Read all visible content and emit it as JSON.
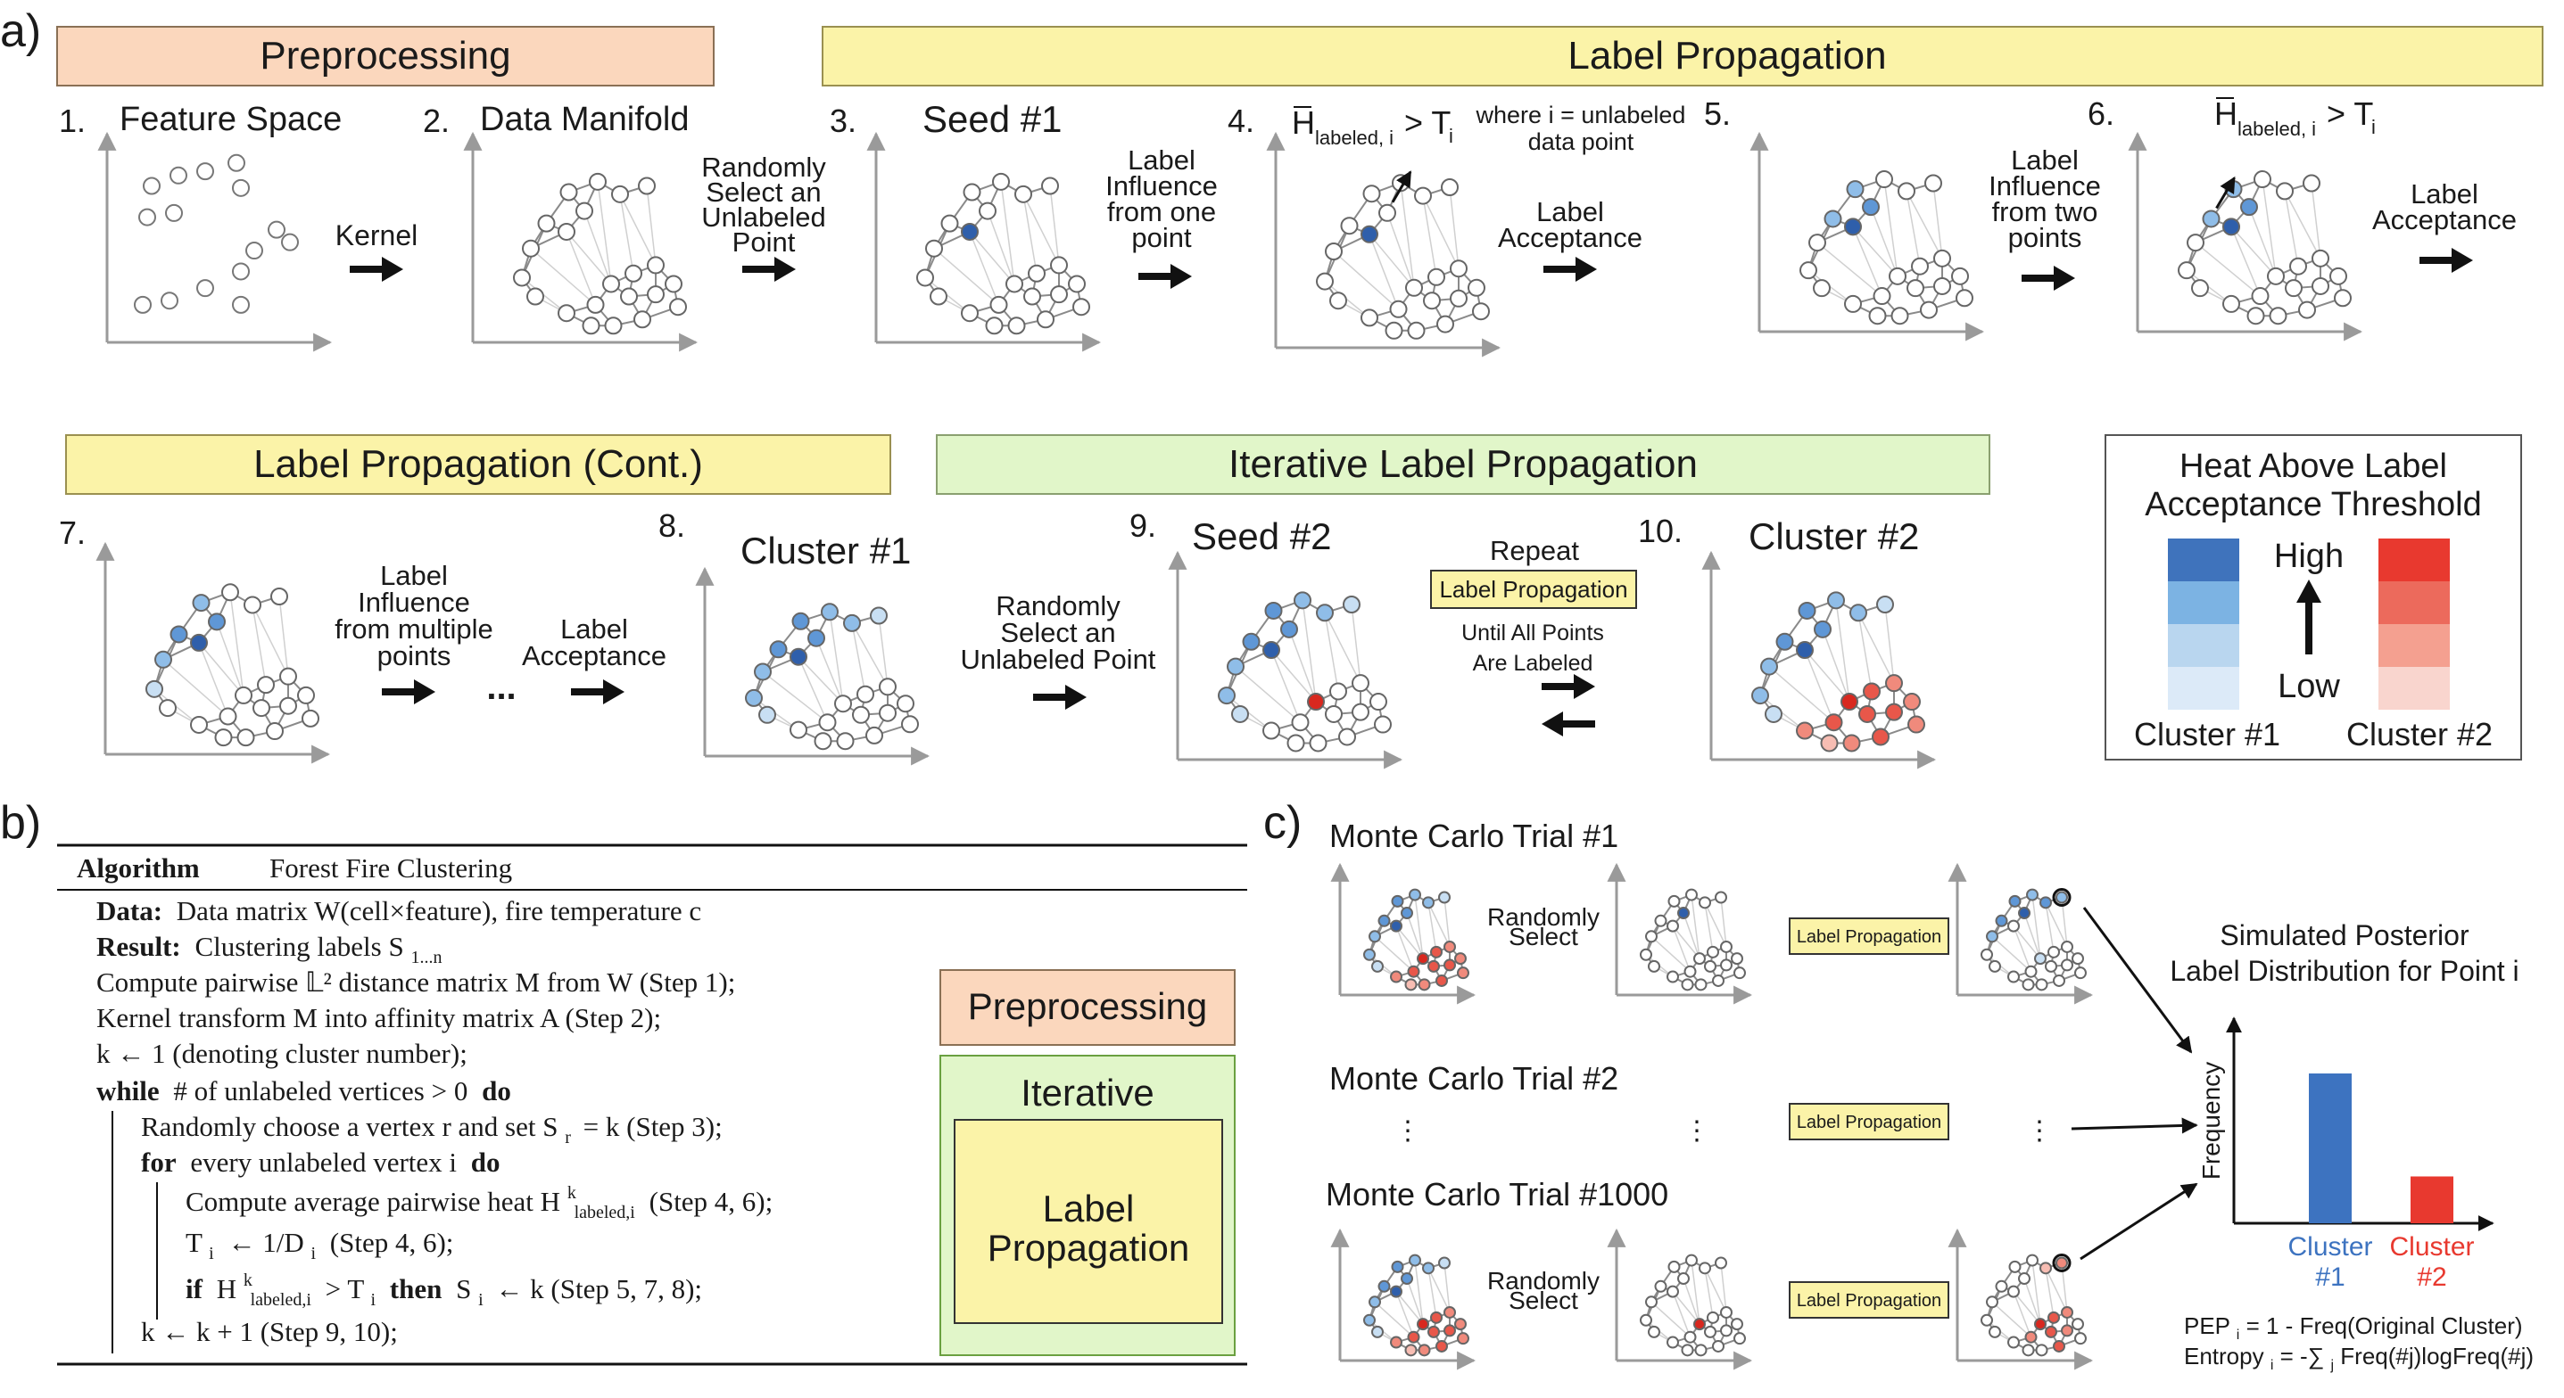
{
  "panel_a": {
    "label": "a)",
    "banners": {
      "preprocessing": "Preprocessing",
      "label_propagation": "Label Propagation",
      "label_propagation_cont": "Label Propagation (Cont.)",
      "iterative": "Iterative Label Propagation"
    },
    "steps": {
      "s1_num": "1.",
      "s1_title": "Feature Space",
      "s2_num": "2.",
      "s2_title": "Data Manifold",
      "s3_num": "3.",
      "s3_title": "Seed #1",
      "s4_num": "4.",
      "s4_H": "H",
      "s4_sub": "labeled, i",
      "s4_gt": "> T",
      "s4_i": "i",
      "s4_note_1": "where i = unlabeled",
      "s4_note_2": "data point",
      "s5_num": "5.",
      "s6_num": "6.",
      "s6_H": "H",
      "s6_sub": "labeled, i",
      "s6_gt": "> T",
      "s6_i": "i",
      "s7_num": "7.",
      "s8_num": "8.",
      "s8_title": "Cluster #1",
      "s9_num": "9.",
      "s9_title": "Seed #2",
      "s10_num": "10.",
      "s10_title": "Cluster #2"
    },
    "arrows": {
      "kernel": [
        "Kernel"
      ],
      "random_select": [
        "Randomly",
        "Select an",
        "Unlabeled",
        "Point"
      ],
      "influence_one": [
        "Label",
        "Influence",
        "from one",
        "point"
      ],
      "acceptance_1": [
        "Label",
        "Acceptance"
      ],
      "influence_two": [
        "Label",
        "Influence",
        "from two",
        "points"
      ],
      "acceptance_2": [
        "Label",
        "Acceptance"
      ],
      "influence_multi": [
        "Label",
        "Influence",
        "from multiple",
        "points"
      ],
      "ellipsis": "...",
      "acceptance_3": [
        "Label",
        "Acceptance"
      ],
      "random_select_2": [
        "Randomly",
        "Select an",
        "Unlabeled Point"
      ],
      "repeat": "Repeat",
      "repeat_box": "Label  Propagation",
      "until": [
        "Until All Points",
        "Are Labeled"
      ]
    },
    "legend": {
      "title_1": "Heat Above Label",
      "title_2": "Acceptance Threshold",
      "high": "High",
      "low": "Low",
      "cluster1": "Cluster #1",
      "cluster2": "Cluster #2",
      "blue_scale": [
        "#3f73bc",
        "#7cb3e3",
        "#b9d6ef",
        "#dceaf8"
      ],
      "red_scale": [
        "#e8392f",
        "#ec6a5c",
        "#f4a090",
        "#f9d5ce"
      ]
    }
  },
  "panel_b": {
    "label": "b)",
    "algorithm": "Algorithm",
    "algorithm_name": "Forest Fire Clustering",
    "lines": {
      "data_kw": "Data:",
      "data_text": "Data matrix W(cell×feature), fire temperature c",
      "result_kw": "Result:",
      "result_text": "Clustering labels S",
      "result_sub": "1...n",
      "l3": "Compute pairwise 𝕃² distance matrix M from W (Step 1);",
      "l4": "Kernel transform M into affinity matrix A (Step 2);",
      "l5": "k ← 1 (denoting cluster number);",
      "l6_kw": "while",
      "l6_text": "# of unlabeled vertices > 0",
      "l6_do": "do",
      "l7": "Randomly choose a vertex r and set S",
      "l7_sub": "r",
      "l7_end": "= k (Step 3);",
      "l8_kw": "for",
      "l8_text": "every unlabeled vertex i",
      "l8_do": "do",
      "l9": "Compute average pairwise heat H",
      "l9_sup": "k",
      "l9_sub": "labeled,i",
      "l9_end": "(Step 4, 6);",
      "l10_a": "T",
      "l10_sub": "i",
      "l10_b": "← 1/D",
      "l10_sub2": "i",
      "l10_end": "(Step 4, 6);",
      "l11_if": "if",
      "l11_a": "H",
      "l11_sup": "k",
      "l11_sub": "labeled,i",
      "l11_b": "> T",
      "l11_sub2": "i",
      "l11_then": "then",
      "l11_c": "S",
      "l11_sub3": "i",
      "l11_end": "← k (Step 5, 7, 8);",
      "l12": "k ← k + 1 (Step 9, 10);"
    },
    "boxes": {
      "preprocessing": "Preprocessing",
      "iterative": "Iterative",
      "label_prop_1": "Label",
      "label_prop_2": "Propagation"
    }
  },
  "panel_c": {
    "label": "c)",
    "trial1": "Monte Carlo Trial #1",
    "trial2": "Monte Carlo Trial #2",
    "trial1000": "Monte Carlo Trial #1000",
    "random_select": [
      "Randomly",
      "Select"
    ],
    "label_prop": "Label  Propagation",
    "vdots": "⋮",
    "posterior_1": "Simulated Posterior",
    "posterior_2": "Label Distribution for Point i",
    "ylabel": "Frequency",
    "pep": "PEP",
    "pep_sub": "i",
    "pep_text": " = 1 - Freq(Original Cluster)",
    "entropy": "Entropy",
    "entropy_sub": "i",
    "entropy_text": " = -∑",
    "entropy_sub2": "j",
    "entropy_text2": "Freq(#j)logFreq(#j)"
  },
  "chart_data": {
    "type": "bar",
    "categories": [
      "Cluster #1",
      "Cluster #2"
    ],
    "values": [
      0.8,
      0.25
    ],
    "colors": [
      "#3d73c0",
      "#e8392f"
    ],
    "ylabel": "Frequency"
  }
}
